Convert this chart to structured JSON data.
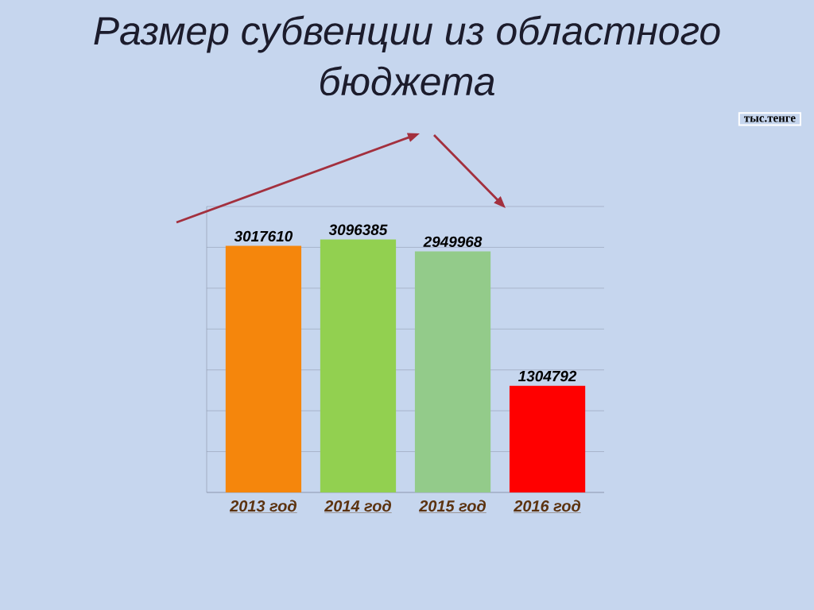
{
  "chart_data": {
    "type": "bar",
    "title": "Размер субвенции из областного бюджета",
    "categories": [
      "2013 год",
      "2014 год",
      "2015 год",
      "2016 год"
    ],
    "values": [
      3017610,
      3096385,
      2949968,
      1304792
    ],
    "colors": [
      "#f5860c",
      "#92d050",
      "#93cb8a",
      "#ff0000"
    ],
    "data_labels": true,
    "ylim": [
      0,
      3500000
    ],
    "yticks": [
      {
        "value": 0,
        "label": null
      },
      {
        "value": 500000,
        "label": null
      },
      {
        "value": 1000000,
        "label": null
      },
      {
        "value": 1500000,
        "label": null
      },
      {
        "value": 2000000,
        "label": null
      },
      {
        "value": 2500000,
        "label": null
      },
      {
        "value": 3000000,
        "label": null
      },
      {
        "value": 3500000,
        "label": null
      }
    ],
    "grid": "y",
    "tick_labels": "x",
    "annotations": [
      "тыс.тенге"
    ]
  }
}
